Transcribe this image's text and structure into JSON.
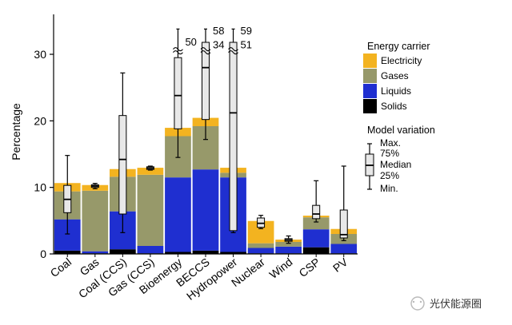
{
  "chart_data": {
    "type": "bar",
    "stacked": true,
    "ylabel": "Percentage",
    "xlabel": "",
    "ylim": [
      0,
      36
    ],
    "yticks": [
      0,
      10,
      20,
      30
    ],
    "categories": [
      "Coal",
      "Gas",
      "Coal (CCS)",
      "Gas (CCS)",
      "Bioenergy",
      "BECCS",
      "Hydropower",
      "Nuclear",
      "Wind",
      "CSP",
      "PV"
    ],
    "series": [
      {
        "name": "Solids",
        "color": "#000000",
        "values": [
          0.5,
          0.1,
          0.7,
          0.1,
          0.3,
          0.5,
          0.3,
          0.1,
          0.1,
          1.0,
          0.1
        ]
      },
      {
        "name": "Liquids",
        "color": "#1f2fd0",
        "values": [
          4.7,
          0.3,
          5.7,
          1.1,
          11.2,
          12.2,
          11.2,
          0.8,
          1.0,
          2.7,
          1.4
        ]
      },
      {
        "name": "Gases",
        "color": "#97996a",
        "values": [
          4.2,
          9.1,
          5.2,
          10.7,
          6.2,
          6.5,
          0.7,
          0.7,
          0.7,
          1.8,
          1.5
        ]
      },
      {
        "name": "Electricity",
        "color": "#f3b320",
        "values": [
          1.3,
          0.9,
          1.2,
          1.1,
          1.3,
          1.3,
          0.8,
          3.4,
          0.4,
          0.3,
          0.8
        ]
      }
    ],
    "box_stats": [
      {
        "min": 3.0,
        "q1": 6.2,
        "median": 8.2,
        "q3": 10.3,
        "max": 14.8
      },
      {
        "min": 9.8,
        "q1": 10.0,
        "median": 10.2,
        "q3": 10.4,
        "max": 10.6
      },
      {
        "min": 3.2,
        "q1": 6.0,
        "median": 14.2,
        "q3": 20.8,
        "max": 27.2
      },
      {
        "min": 12.6,
        "q1": 12.7,
        "median": 12.9,
        "q3": 13.1,
        "max": 13.2
      },
      {
        "min": 14.5,
        "q1": 18.8,
        "median": 23.8,
        "q3": 29.5,
        "max": 50
      },
      {
        "min": 17.2,
        "q1": 20.2,
        "median": 28.0,
        "q3": 34,
        "max": 58
      },
      {
        "min": 3.2,
        "q1": 3.5,
        "median": 21.2,
        "q3": 51,
        "max": 59
      },
      {
        "min": 3.8,
        "q1": 4.0,
        "median": 4.6,
        "q3": 5.4,
        "max": 5.8
      },
      {
        "min": 1.6,
        "q1": 1.9,
        "median": 2.1,
        "q3": 2.3,
        "max": 2.7
      },
      {
        "min": 4.8,
        "q1": 5.3,
        "median": 6.0,
        "q3": 7.3,
        "max": 11.0
      },
      {
        "min": 2.0,
        "q1": 2.4,
        "median": 2.9,
        "q3": 6.6,
        "max": 13.2
      }
    ],
    "annotations": [
      {
        "category": "Bioenergy",
        "text": "50"
      },
      {
        "category": "BECCS",
        "text": "58"
      },
      {
        "category": "BECCS",
        "text": "34"
      },
      {
        "category": "Hydropower",
        "text": "59"
      },
      {
        "category": "Hydropower",
        "text": "51"
      }
    ],
    "legend": {
      "position": "top-right",
      "title": "Energy carrier",
      "order": [
        "Electricity",
        "Gases",
        "Liquids",
        "Solids"
      ]
    },
    "box_legend": {
      "title": "Model variation",
      "labels": [
        "Max.",
        "75%",
        "Median",
        "25%",
        "Min."
      ]
    },
    "grid": false
  },
  "watermark": {
    "text": "光伏能源圈"
  }
}
